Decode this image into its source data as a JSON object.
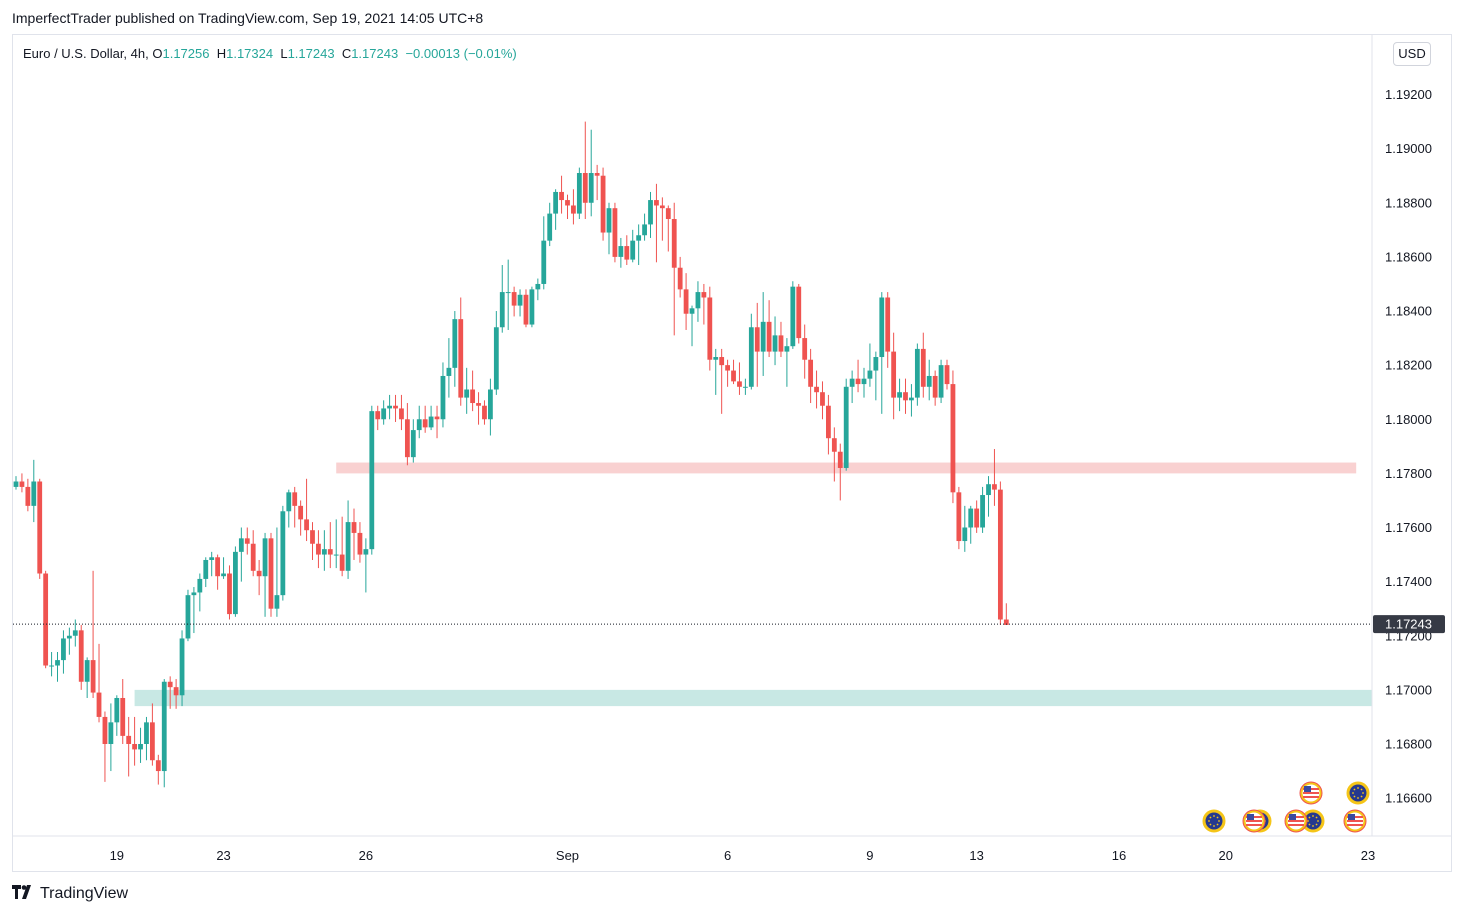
{
  "publisher": "ImperfectTrader published on TradingView.com, Sep 19, 2021 14:05 UTC+8",
  "legend": {
    "symbol": "Euro / U.S. Dollar, 4h,",
    "o_label": "O",
    "o": "1.17256",
    "h_label": "H",
    "h": "1.17324",
    "l_label": "L",
    "l": "1.17243",
    "c_label": "C",
    "c": "1.17243",
    "change": "−0.00013 (−0.01%)"
  },
  "currency_button": "USD",
  "footer": {
    "brand": "TradingView"
  },
  "colors": {
    "up": "#26a69a",
    "down": "#ef5350",
    "resistance": "#f9d1d1",
    "support": "#c8e8e4",
    "price_label_bg": "#363a45"
  },
  "chart_data": {
    "type": "candlestick",
    "ylim": [
      1.1646,
      1.1942
    ],
    "y_ticks": [
      "1.19200",
      "1.19000",
      "1.18800",
      "1.18600",
      "1.18400",
      "1.18200",
      "1.18000",
      "1.17800",
      "1.17600",
      "1.17400",
      "1.17200",
      "1.17000",
      "1.16800",
      "1.16600"
    ],
    "x_ticks": [
      {
        "label": "19",
        "idx": 17
      },
      {
        "label": "23",
        "idx": 35
      },
      {
        "label": "26",
        "idx": 59
      },
      {
        "label": "Sep",
        "idx": 93
      },
      {
        "label": "6",
        "idx": 120
      },
      {
        "label": "9",
        "idx": 144
      },
      {
        "label": "13",
        "idx": 162
      },
      {
        "label": "16",
        "idx": 186
      },
      {
        "label": "20",
        "idx": 204
      },
      {
        "label": "23",
        "idx": 228
      }
    ],
    "last_price": "1.17243",
    "zones": [
      {
        "name": "resistance",
        "from": 1.178,
        "to": 1.1784,
        "start_idx": 54,
        "end_idx": 226
      },
      {
        "name": "support",
        "from": 1.1694,
        "to": 1.17,
        "start_idx": 20,
        "end_idx": 229
      }
    ],
    "candles": [
      [
        1.1775,
        1.1779,
        1.1774,
        1.1777
      ],
      [
        1.1777,
        1.178,
        1.1773,
        1.1775
      ],
      [
        1.1775,
        1.1778,
        1.1766,
        1.1768
      ],
      [
        1.1768,
        1.1785,
        1.1762,
        1.1777
      ],
      [
        1.1777,
        1.1778,
        1.1741,
        1.1743
      ],
      [
        1.1743,
        1.1744,
        1.1708,
        1.1709
      ],
      [
        1.1709,
        1.1714,
        1.1705,
        1.1709
      ],
      [
        1.1709,
        1.1714,
        1.1703,
        1.1711
      ],
      [
        1.1711,
        1.1722,
        1.1706,
        1.1719
      ],
      [
        1.1719,
        1.1723,
        1.1713,
        1.172
      ],
      [
        1.172,
        1.1726,
        1.1716,
        1.1722
      ],
      [
        1.1722,
        1.1724,
        1.17,
        1.1703
      ],
      [
        1.1703,
        1.1712,
        1.1697,
        1.1711
      ],
      [
        1.1711,
        1.1744,
        1.1697,
        1.1699
      ],
      [
        1.1699,
        1.1717,
        1.1688,
        1.169
      ],
      [
        1.169,
        1.1692,
        1.1666,
        1.168
      ],
      [
        1.168,
        1.1695,
        1.167,
        1.1688
      ],
      [
        1.1688,
        1.1698,
        1.1683,
        1.1697
      ],
      [
        1.1697,
        1.1704,
        1.168,
        1.1683
      ],
      [
        1.1683,
        1.169,
        1.1668,
        1.168
      ],
      [
        1.168,
        1.169,
        1.1672,
        1.1678
      ],
      [
        1.1678,
        1.1686,
        1.1673,
        1.168
      ],
      [
        1.168,
        1.169,
        1.1674,
        1.1688
      ],
      [
        1.1688,
        1.1695,
        1.1672,
        1.1674
      ],
      [
        1.1674,
        1.1676,
        1.1665,
        1.167
      ],
      [
        1.167,
        1.1704,
        1.1664,
        1.1703
      ],
      [
        1.1703,
        1.1705,
        1.1693,
        1.1701
      ],
      [
        1.1701,
        1.1704,
        1.1693,
        1.1698
      ],
      [
        1.1698,
        1.1722,
        1.1694,
        1.1719
      ],
      [
        1.1719,
        1.1737,
        1.1718,
        1.1735
      ],
      [
        1.1735,
        1.1738,
        1.1721,
        1.1736
      ],
      [
        1.1736,
        1.1743,
        1.1729,
        1.1741
      ],
      [
        1.1741,
        1.1749,
        1.1738,
        1.1748
      ],
      [
        1.1748,
        1.1751,
        1.1742,
        1.1749
      ],
      [
        1.1749,
        1.175,
        1.1737,
        1.1742
      ],
      [
        1.1742,
        1.1749,
        1.1741,
        1.1743
      ],
      [
        1.1743,
        1.1746,
        1.1726,
        1.1728
      ],
      [
        1.1728,
        1.1753,
        1.1727,
        1.1751
      ],
      [
        1.1751,
        1.176,
        1.174,
        1.1756
      ],
      [
        1.1756,
        1.176,
        1.175,
        1.1754
      ],
      [
        1.1754,
        1.1759,
        1.1742,
        1.1744
      ],
      [
        1.1744,
        1.1748,
        1.1735,
        1.1742
      ],
      [
        1.1742,
        1.1758,
        1.1727,
        1.1756
      ],
      [
        1.1756,
        1.1758,
        1.1727,
        1.173
      ],
      [
        1.173,
        1.176,
        1.1727,
        1.1735
      ],
      [
        1.1735,
        1.1768,
        1.1733,
        1.1766
      ],
      [
        1.1766,
        1.1774,
        1.176,
        1.1773
      ],
      [
        1.1773,
        1.1775,
        1.176,
        1.1768
      ],
      [
        1.1768,
        1.177,
        1.1757,
        1.1763
      ],
      [
        1.1763,
        1.1778,
        1.1755,
        1.1759
      ],
      [
        1.1759,
        1.1762,
        1.1748,
        1.1754
      ],
      [
        1.1754,
        1.1759,
        1.1745,
        1.175
      ],
      [
        1.175,
        1.1759,
        1.1744,
        1.1752
      ],
      [
        1.1752,
        1.1762,
        1.1745,
        1.175
      ],
      [
        1.175,
        1.1763,
        1.1745,
        1.175
      ],
      [
        1.175,
        1.1764,
        1.1742,
        1.1744
      ],
      [
        1.1744,
        1.177,
        1.1741,
        1.1762
      ],
      [
        1.1762,
        1.1767,
        1.1748,
        1.1758
      ],
      [
        1.1758,
        1.1762,
        1.1747,
        1.175
      ],
      [
        1.175,
        1.1756,
        1.1736,
        1.1752
      ],
      [
        1.1752,
        1.1805,
        1.175,
        1.1803
      ],
      [
        1.1803,
        1.1805,
        1.1796,
        1.18
      ],
      [
        1.18,
        1.1807,
        1.1798,
        1.1804
      ],
      [
        1.1804,
        1.1809,
        1.18,
        1.1805
      ],
      [
        1.1805,
        1.1809,
        1.1799,
        1.1804
      ],
      [
        1.1804,
        1.1809,
        1.1796,
        1.18
      ],
      [
        1.18,
        1.1806,
        1.1783,
        1.1786
      ],
      [
        1.1786,
        1.18,
        1.1784,
        1.1796
      ],
      [
        1.1796,
        1.1805,
        1.1793,
        1.18
      ],
      [
        1.18,
        1.1805,
        1.1795,
        1.1797
      ],
      [
        1.1797,
        1.1805,
        1.1796,
        1.1801
      ],
      [
        1.1801,
        1.1805,
        1.1793,
        1.18
      ],
      [
        1.18,
        1.1821,
        1.1797,
        1.1816
      ],
      [
        1.1816,
        1.183,
        1.1808,
        1.1819
      ],
      [
        1.1819,
        1.184,
        1.1812,
        1.1837
      ],
      [
        1.1837,
        1.1845,
        1.1805,
        1.1808
      ],
      [
        1.1808,
        1.1819,
        1.1802,
        1.1811
      ],
      [
        1.1811,
        1.1818,
        1.1803,
        1.1806
      ],
      [
        1.1806,
        1.181,
        1.1798,
        1.1805
      ],
      [
        1.1805,
        1.1807,
        1.1798,
        1.18
      ],
      [
        1.18,
        1.1815,
        1.1794,
        1.1811
      ],
      [
        1.1811,
        1.184,
        1.1809,
        1.1834
      ],
      [
        1.1834,
        1.1857,
        1.1832,
        1.1847
      ],
      [
        1.1847,
        1.1859,
        1.1833,
        1.1847
      ],
      [
        1.1847,
        1.1849,
        1.1838,
        1.1842
      ],
      [
        1.1842,
        1.1848,
        1.1838,
        1.1846
      ],
      [
        1.1846,
        1.1848,
        1.1834,
        1.1835
      ],
      [
        1.1835,
        1.1849,
        1.1834,
        1.1848
      ],
      [
        1.1848,
        1.1852,
        1.1844,
        1.185
      ],
      [
        1.185,
        1.1875,
        1.1848,
        1.1866
      ],
      [
        1.1866,
        1.188,
        1.1864,
        1.1876
      ],
      [
        1.1876,
        1.1885,
        1.187,
        1.1884
      ],
      [
        1.1884,
        1.189,
        1.1876,
        1.1881
      ],
      [
        1.1881,
        1.1883,
        1.1874,
        1.1879
      ],
      [
        1.1879,
        1.1885,
        1.1872,
        1.1876
      ],
      [
        1.1876,
        1.1893,
        1.1874,
        1.1891
      ],
      [
        1.1891,
        1.191,
        1.1874,
        1.188
      ],
      [
        1.188,
        1.1907,
        1.1875,
        1.1891
      ],
      [
        1.1891,
        1.1894,
        1.1881,
        1.189
      ],
      [
        1.189,
        1.1893,
        1.1866,
        1.1869
      ],
      [
        1.1869,
        1.188,
        1.1861,
        1.1878
      ],
      [
        1.1878,
        1.188,
        1.1858,
        1.186
      ],
      [
        1.186,
        1.1867,
        1.1856,
        1.1864
      ],
      [
        1.1864,
        1.1868,
        1.1857,
        1.1859
      ],
      [
        1.1859,
        1.187,
        1.1858,
        1.1866
      ],
      [
        1.1866,
        1.1872,
        1.1857,
        1.1868
      ],
      [
        1.1868,
        1.1876,
        1.1866,
        1.1872
      ],
      [
        1.1872,
        1.1884,
        1.1867,
        1.1881
      ],
      [
        1.1881,
        1.1887,
        1.1858,
        1.1879
      ],
      [
        1.1879,
        1.1882,
        1.1866,
        1.1878
      ],
      [
        1.1878,
        1.1879,
        1.1862,
        1.1874
      ],
      [
        1.1874,
        1.188,
        1.1831,
        1.1856
      ],
      [
        1.1856,
        1.186,
        1.1845,
        1.1848
      ],
      [
        1.1848,
        1.1854,
        1.1833,
        1.1839
      ],
      [
        1.1839,
        1.1842,
        1.1827,
        1.1841
      ],
      [
        1.1841,
        1.1851,
        1.1836,
        1.1847
      ],
      [
        1.1847,
        1.185,
        1.1835,
        1.1845
      ],
      [
        1.1845,
        1.1849,
        1.1818,
        1.1822
      ],
      [
        1.1822,
        1.1826,
        1.1809,
        1.1823
      ],
      [
        1.1823,
        1.1826,
        1.1802,
        1.182
      ],
      [
        1.182,
        1.1822,
        1.1812,
        1.1818
      ],
      [
        1.1818,
        1.1822,
        1.1813,
        1.1814
      ],
      [
        1.1814,
        1.1821,
        1.1809,
        1.1812
      ],
      [
        1.1812,
        1.1815,
        1.1809,
        1.1812
      ],
      [
        1.1812,
        1.1839,
        1.1811,
        1.1834
      ],
      [
        1.1834,
        1.1843,
        1.1812,
        1.1825
      ],
      [
        1.1825,
        1.1847,
        1.1816,
        1.1836
      ],
      [
        1.1836,
        1.1844,
        1.1823,
        1.1825
      ],
      [
        1.1825,
        1.1838,
        1.182,
        1.1831
      ],
      [
        1.1831,
        1.1836,
        1.1823,
        1.1825
      ],
      [
        1.1825,
        1.183,
        1.1812,
        1.1827
      ],
      [
        1.1827,
        1.1851,
        1.1826,
        1.1849
      ],
      [
        1.1849,
        1.185,
        1.1828,
        1.183
      ],
      [
        1.183,
        1.1835,
        1.1815,
        1.1822
      ],
      [
        1.1822,
        1.1826,
        1.1806,
        1.1812
      ],
      [
        1.1812,
        1.1818,
        1.1804,
        1.181
      ],
      [
        1.181,
        1.1814,
        1.18,
        1.1805
      ],
      [
        1.1805,
        1.1809,
        1.1787,
        1.1793
      ],
      [
        1.1793,
        1.1797,
        1.1777,
        1.1788
      ],
      [
        1.1788,
        1.1791,
        1.177,
        1.1782
      ],
      [
        1.1782,
        1.1815,
        1.1781,
        1.1812
      ],
      [
        1.1812,
        1.1818,
        1.1806,
        1.1815
      ],
      [
        1.1815,
        1.1822,
        1.181,
        1.1813
      ],
      [
        1.1813,
        1.1819,
        1.1808,
        1.1815
      ],
      [
        1.1815,
        1.1828,
        1.1812,
        1.1818
      ],
      [
        1.1818,
        1.1825,
        1.1807,
        1.1823
      ],
      [
        1.1823,
        1.1847,
        1.1802,
        1.1845
      ],
      [
        1.1845,
        1.1847,
        1.1819,
        1.1825
      ],
      [
        1.1825,
        1.1832,
        1.18,
        1.1808
      ],
      [
        1.1808,
        1.1815,
        1.1803,
        1.181
      ],
      [
        1.181,
        1.1815,
        1.1802,
        1.1807
      ],
      [
        1.1807,
        1.1813,
        1.1801,
        1.1808
      ],
      [
        1.1808,
        1.1828,
        1.1805,
        1.1826
      ],
      [
        1.1826,
        1.1832,
        1.1808,
        1.1812
      ],
      [
        1.1812,
        1.1822,
        1.1807,
        1.1816
      ],
      [
        1.1816,
        1.1818,
        1.1805,
        1.1808
      ],
      [
        1.1808,
        1.1822,
        1.1806,
        1.182
      ],
      [
        1.182,
        1.1822,
        1.1811,
        1.1813
      ],
      [
        1.1813,
        1.1818,
        1.1769,
        1.1773
      ],
      [
        1.1773,
        1.1775,
        1.1752,
        1.1755
      ],
      [
        1.1755,
        1.1768,
        1.1751,
        1.176
      ],
      [
        1.176,
        1.1768,
        1.1754,
        1.1767
      ],
      [
        1.1767,
        1.177,
        1.1758,
        1.176
      ],
      [
        1.176,
        1.1775,
        1.1758,
        1.1772
      ],
      [
        1.1772,
        1.1779,
        1.1764,
        1.1776
      ],
      [
        1.1776,
        1.1789,
        1.1768,
        1.1774
      ],
      [
        1.1774,
        1.1777,
        1.1724,
        1.1726
      ],
      [
        1.1726,
        1.1732,
        1.1724,
        1.1724
      ]
    ]
  }
}
